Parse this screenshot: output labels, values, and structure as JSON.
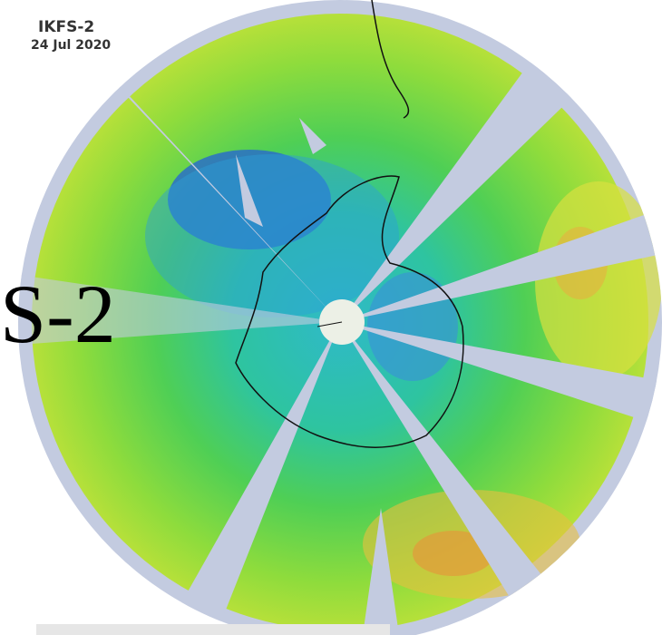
{
  "header": {
    "title": "IKFS-2",
    "date": "24 Jul 2020"
  },
  "overlay_text": "S-2"
}
